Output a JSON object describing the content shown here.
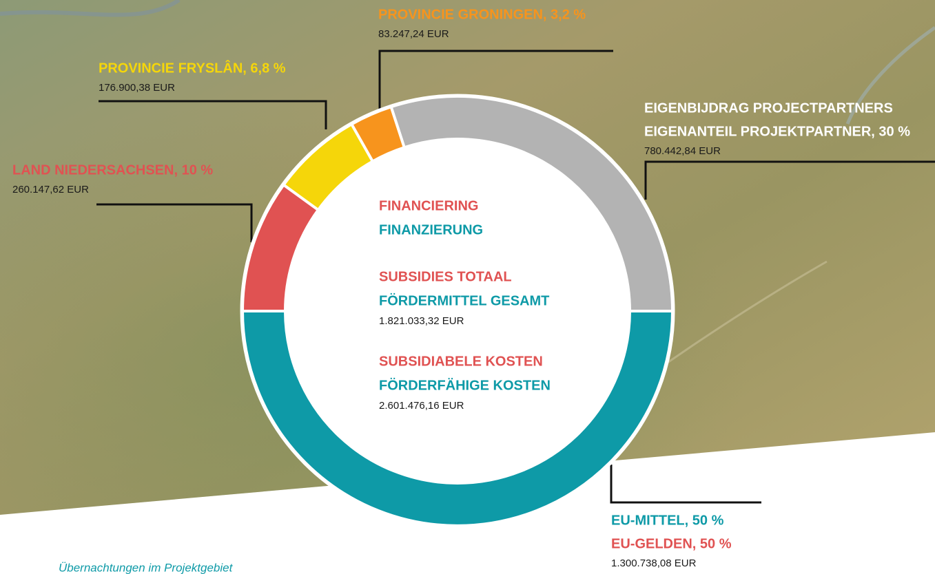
{
  "chart_data": {
    "type": "pie",
    "slices": [
      {
        "label_lines": [
          "EU-MITTEL, 50 %",
          "EU-GELDEN, 50 %"
        ],
        "label_colors": [
          "#0e9aa7",
          "#e05252"
        ],
        "amount": "1.300.738,08 EUR",
        "value": 50,
        "color": "#0e9aa7"
      },
      {
        "label_lines": [
          "EIGENBIJDRAG PROJECTPARTNERS",
          "EIGENANTEIL PROJEKTPARTNER, 30 %"
        ],
        "label_colors": [
          "#ffffff",
          "#ffffff"
        ],
        "amount": "780.442,84 EUR",
        "value": 30,
        "color": "#b3b3b3"
      },
      {
        "label_lines": [
          "PROVINCIE GRONINGEN, 3,2 %"
        ],
        "label_colors": [
          "#f7941d"
        ],
        "amount": "83.247,24 EUR",
        "value": 3.2,
        "color": "#f7941d"
      },
      {
        "label_lines": [
          "PROVINCIE FRYSLÂN, 6,8 %"
        ],
        "label_colors": [
          "#f5d60a"
        ],
        "amount": "176.900,38 EUR",
        "value": 6.8,
        "color": "#f5d60a"
      },
      {
        "label_lines": [
          "LAND NIEDERSACHSEN, 10 %"
        ],
        "label_colors": [
          "#e05252"
        ],
        "amount": "260.147,62 EUR",
        "value": 10,
        "color": "#e05252"
      }
    ],
    "center": [
      {
        "nl": "FINANCIERING",
        "de": "FINANZIERUNG"
      },
      {
        "nl": "SUBSIDIES TOTAAL",
        "de": "FÖRDERMITTEL GESAMT",
        "amount": "1.821.033,32 EUR"
      },
      {
        "nl": "SUBSIDIABELE KOSTEN",
        "de": "FÖRDERFÄHIGE KOSTEN",
        "amount": "2.601.476,16 EUR"
      }
    ],
    "center_colors": {
      "nl": "#e05252",
      "de": "#0e9aa7"
    },
    "caption": "Übernachtungen im Projektgebiet"
  }
}
